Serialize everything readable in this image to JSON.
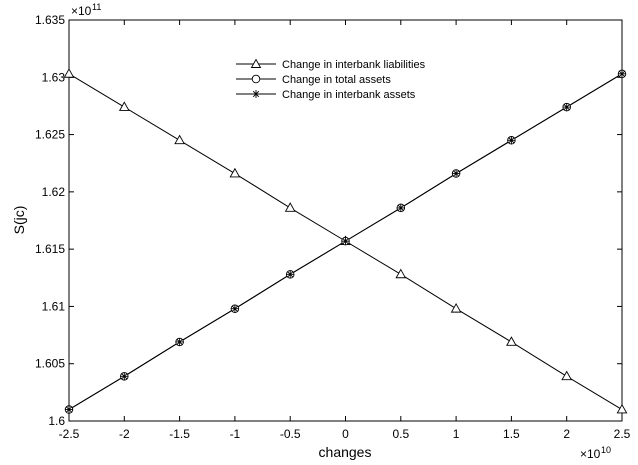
{
  "chart_data": {
    "type": "line",
    "title": "",
    "xlabel": "changes",
    "ylabel": "S(jc)",
    "x_exponent_base": "×10",
    "x_exponent_power": "10",
    "y_exponent_base": "×10",
    "y_exponent_power": "11",
    "xlim": [
      -2.5,
      2.5
    ],
    "ylim": [
      1.6,
      1.635
    ],
    "x_tick_values": [
      -2.5,
      -2,
      -1.5,
      -1,
      -0.5,
      0,
      0.5,
      1,
      1.5,
      2,
      2.5
    ],
    "x_tick_labels": [
      "-2.5",
      "-2",
      "-1.5",
      "-1",
      "-0.5",
      "0",
      "0.5",
      "1",
      "1.5",
      "2",
      "2.5"
    ],
    "y_tick_values": [
      1.6,
      1.605,
      1.61,
      1.615,
      1.62,
      1.625,
      1.63,
      1.635
    ],
    "y_tick_labels": [
      "1.6",
      "1.605",
      "1.61",
      "1.615",
      "1.62",
      "1.625",
      "1.63",
      "1.635"
    ],
    "grid": false,
    "legend_position": "top-center",
    "x": [
      -2.5,
      -2,
      -1.5,
      -1,
      -0.5,
      0,
      0.5,
      1,
      1.5,
      2,
      2.5
    ],
    "series": [
      {
        "name": "Change in interbank liabilities",
        "marker": "triangle",
        "values": [
          1.6303,
          1.6274,
          1.6245,
          1.6216,
          1.6186,
          1.6157,
          1.6128,
          1.6098,
          1.6069,
          1.6039,
          1.601
        ]
      },
      {
        "name": "Change in total assets",
        "marker": "circle",
        "values": [
          1.601,
          1.6039,
          1.6069,
          1.6098,
          1.6128,
          1.6157,
          1.6186,
          1.6216,
          1.6245,
          1.6274,
          1.6303
        ]
      },
      {
        "name": "Change in interbank assets",
        "marker": "asterisk",
        "values": [
          1.601,
          1.6039,
          1.6069,
          1.6098,
          1.6128,
          1.6157,
          1.6186,
          1.6216,
          1.6245,
          1.6274,
          1.6303
        ]
      }
    ],
    "line_color": "#000000",
    "marker_color": "#000000"
  }
}
